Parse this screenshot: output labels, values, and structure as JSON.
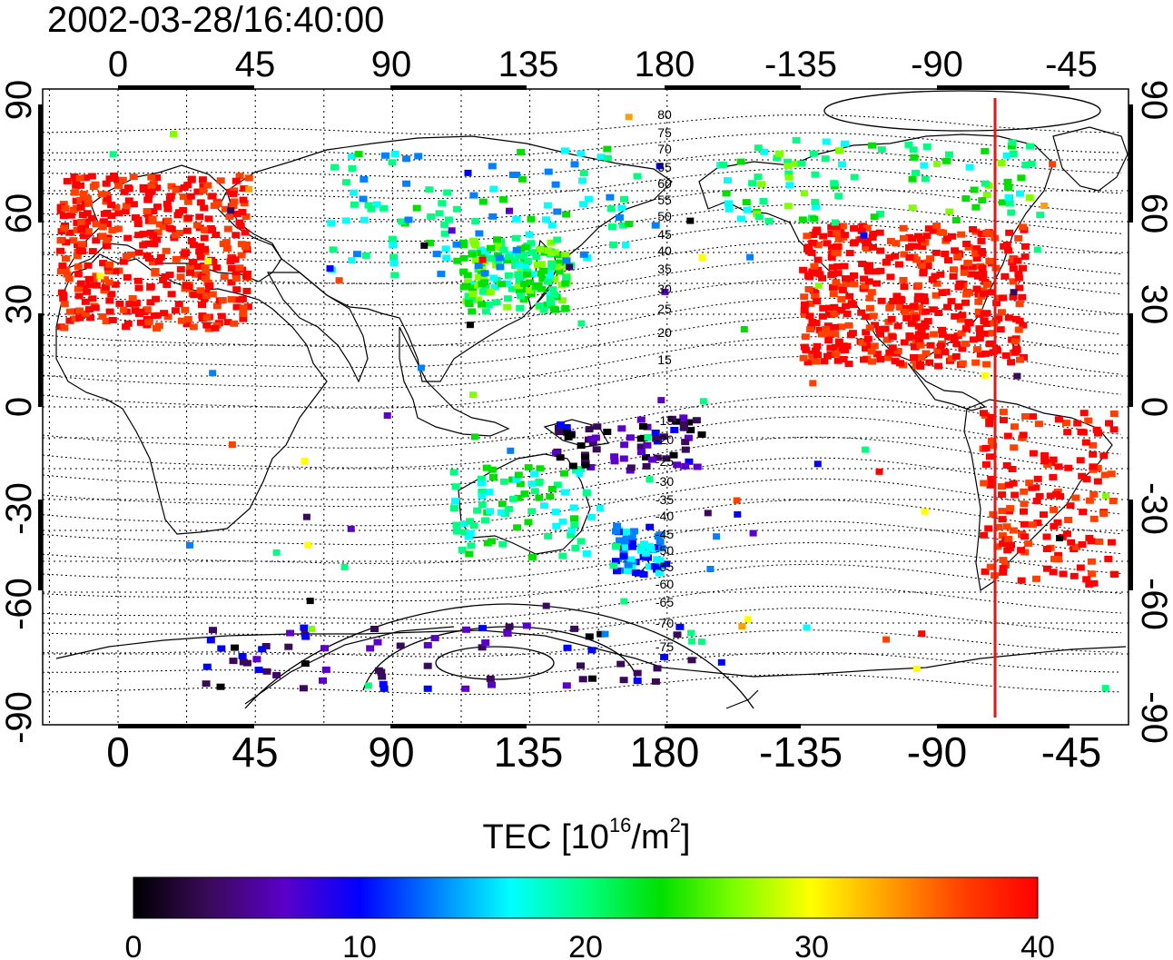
{
  "title": "2002-03-28/16:40:00",
  "map": {
    "top_lon_labels": [
      "0",
      "45",
      "90",
      "135",
      "180",
      "-135",
      "-90",
      "-45"
    ],
    "bottom_lon_labels": [
      "0",
      "45",
      "90",
      "135",
      "180",
      "-135",
      "-90",
      "-45"
    ],
    "left_lat_labels": [
      "90",
      "60",
      "30",
      "0",
      "-30",
      "-60",
      "-90"
    ],
    "right_lat_labels": [
      "90",
      "60",
      "30",
      "0",
      "-30",
      "-60",
      "-90"
    ],
    "contour_labels_north": [
      "80",
      "75",
      "70",
      "65",
      "60",
      "55",
      "50",
      "45",
      "40",
      "35",
      "30",
      "25",
      "20",
      "15"
    ],
    "contour_labels_south": [
      "-15",
      "-20",
      "-25",
      "-30",
      "-35",
      "-40",
      "-45",
      "-50",
      "-55",
      "-60",
      "-65",
      "-70",
      "-75"
    ],
    "terminator_color": "#e01818",
    "terminator_lon": -71
  },
  "colorbar": {
    "title_main": "TEC  [10",
    "title_sup1": "16",
    "title_mid": "/m",
    "title_sup2": "2",
    "title_end": "]",
    "tick_labels": [
      "0",
      "10",
      "20",
      "30",
      "40"
    ],
    "range": [
      0,
      40
    ],
    "colors": [
      "#000000",
      "#3a0a5a",
      "#5a00c8",
      "#0000ff",
      "#0080ff",
      "#00ffff",
      "#00ff80",
      "#00e000",
      "#80ff00",
      "#ffff00",
      "#ffa000",
      "#ff4000",
      "#ff0000"
    ]
  },
  "tec_regions": [
    {
      "name": "europe-north-africa",
      "value": 40
    },
    {
      "name": "north-america",
      "value": 40
    },
    {
      "name": "south-america",
      "value": 40
    },
    {
      "name": "east-asia",
      "value": 22
    },
    {
      "name": "siberia",
      "value": 18
    },
    {
      "name": "australia",
      "value": 20
    },
    {
      "name": "new-zealand",
      "value": 14
    },
    {
      "name": "western-pacific",
      "value": 4
    },
    {
      "name": "antarctica",
      "value": 6
    },
    {
      "name": "alaska",
      "value": 22
    }
  ]
}
